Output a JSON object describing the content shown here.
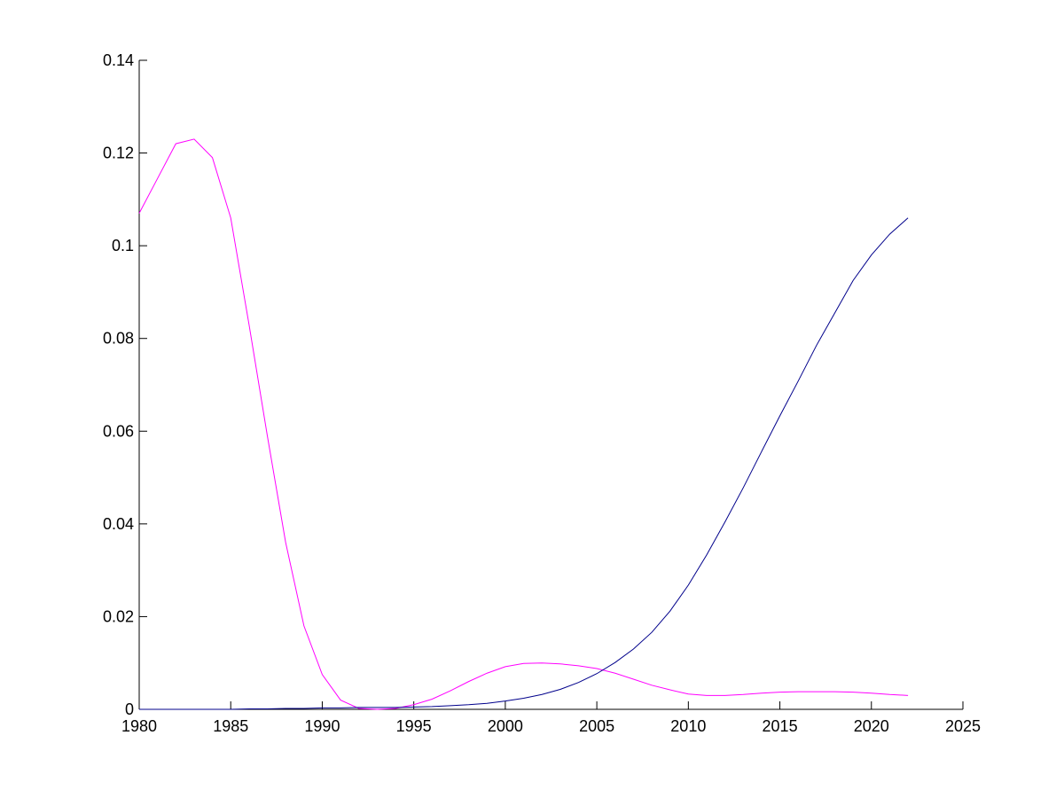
{
  "chart_data": {
    "type": "line",
    "x": [
      1980,
      1981,
      1982,
      1983,
      1984,
      1985,
      1986,
      1987,
      1988,
      1989,
      1990,
      1991,
      1992,
      1993,
      1994,
      1995,
      1996,
      1997,
      1998,
      1999,
      2000,
      2001,
      2002,
      2003,
      2004,
      2005,
      2006,
      2007,
      2008,
      2009,
      2010,
      2011,
      2012,
      2013,
      2014,
      2015,
      2016,
      2017,
      2018,
      2019,
      2020,
      2021,
      2022
    ],
    "series": [
      {
        "color": "#ff00ff",
        "values": [
          0.107,
          0.1145,
          0.122,
          0.123,
          0.119,
          0.106,
          0.083,
          0.059,
          0.036,
          0.018,
          0.0075,
          0.002,
          0.0002,
          0,
          0.0002,
          0.001,
          0.0022,
          0.004,
          0.006,
          0.0078,
          0.0092,
          0.0099,
          0.01,
          0.0098,
          0.0094,
          0.0088,
          0.0078,
          0.0065,
          0.0052,
          0.0042,
          0.0033,
          0.003,
          0.003,
          0.0032,
          0.0035,
          0.0037,
          0.0038,
          0.0038,
          0.0038,
          0.0037,
          0.0035,
          0.0032,
          0.003
        ]
      },
      {
        "color": "#00008b",
        "values": [
          0,
          0,
          0,
          0,
          0,
          0,
          0.0001,
          0.0001,
          0.0002,
          0.0002,
          0.0003,
          0.0003,
          0.0004,
          0.0004,
          0.0004,
          0.0005,
          0.0006,
          0.0008,
          0.001,
          0.0013,
          0.0018,
          0.0024,
          0.0032,
          0.0043,
          0.0058,
          0.0077,
          0.0101,
          0.013,
          0.0166,
          0.0212,
          0.0268,
          0.0333,
          0.0404,
          0.0478,
          0.0556,
          0.0633,
          0.0708,
          0.0785,
          0.0855,
          0.0925,
          0.098,
          0.1025,
          0.106
        ]
      }
    ],
    "xlim": [
      1980,
      2025
    ],
    "xticks": [
      1980,
      1985,
      1990,
      1995,
      2000,
      2005,
      2010,
      2015,
      2020,
      2025
    ],
    "ylim": [
      0,
      0.14
    ],
    "yticks": [
      0,
      0.02,
      0.04,
      0.06,
      0.08,
      0.1,
      0.12,
      0.14
    ]
  }
}
